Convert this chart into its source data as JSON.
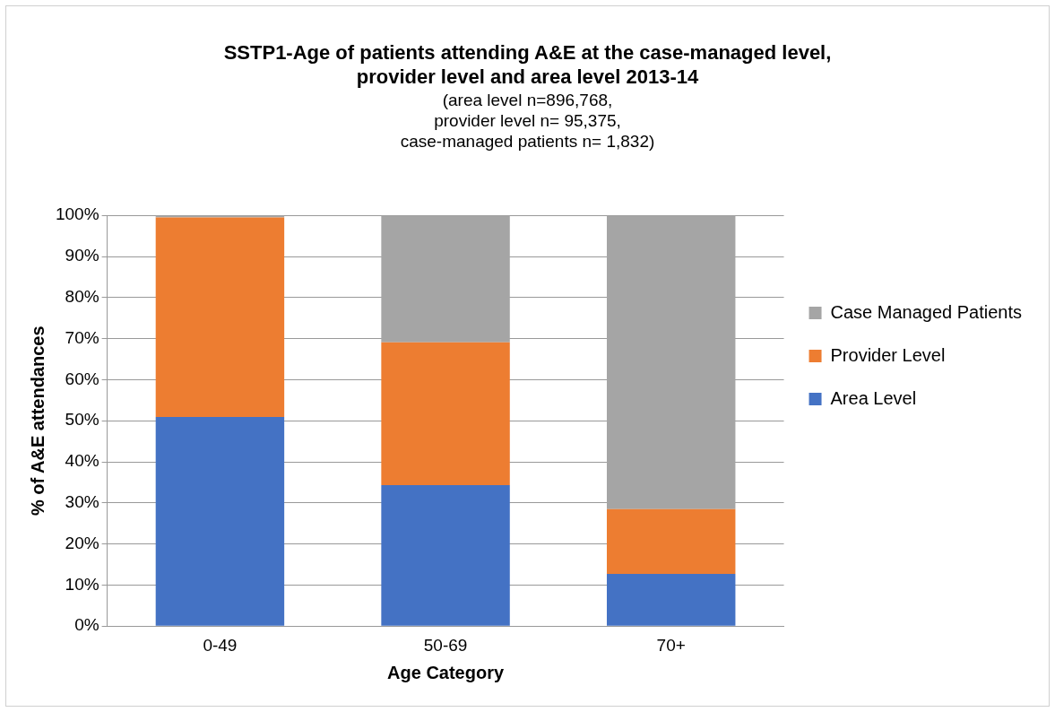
{
  "chart_data": {
    "type": "bar",
    "stacked": true,
    "title": "SSTP1-Age of patients attending A&E at the case-managed level,\nprovider level and area level 2013-14",
    "subtitle": "(area level n=896,768,\nprovider level n= 95,375,\ncase-managed patients n= 1,832)",
    "xlabel": "Age Category",
    "ylabel": "% of A&E attendances",
    "categories": [
      "0-49",
      "50-69",
      "70+"
    ],
    "series": [
      {
        "name": "Area Level",
        "color": "#4472c4",
        "values": [
          50.9,
          34.3,
          12.7
        ]
      },
      {
        "name": "Provider Level",
        "color": "#ed7d31",
        "values": [
          48.6,
          34.8,
          15.8
        ]
      },
      {
        "name": "Case Managed Patients",
        "color": "#a5a5a5",
        "values": [
          0.5,
          30.9,
          71.5
        ]
      }
    ],
    "ylim": [
      0,
      100
    ],
    "yticks": [
      {
        "value": 0,
        "label": "0%"
      },
      {
        "value": 10,
        "label": "10%"
      },
      {
        "value": 20,
        "label": "20%"
      },
      {
        "value": 30,
        "label": "30%"
      },
      {
        "value": 40,
        "label": "40%"
      },
      {
        "value": 50,
        "label": "50%"
      },
      {
        "value": 60,
        "label": "60%"
      },
      {
        "value": 70,
        "label": "70%"
      },
      {
        "value": 80,
        "label": "80%"
      },
      {
        "value": 90,
        "label": "90%"
      },
      {
        "value": 100,
        "label": "100%"
      }
    ],
    "grid": "y",
    "legend": "right"
  }
}
